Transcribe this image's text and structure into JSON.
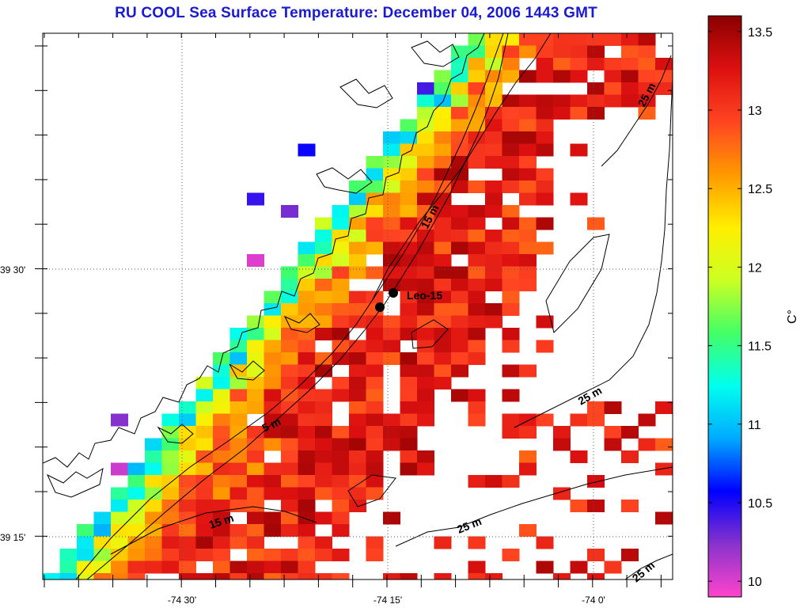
{
  "title": "RU COOL  Sea Surface Temperature:  December 04, 2006 1443 GMT",
  "map": {
    "lon_ticks": [
      "-74 30'",
      "-74 15'",
      "-74 0'"
    ],
    "lat_ticks": [
      "39 30'",
      "39 15'"
    ],
    "annotations": {
      "station": "Leo-15",
      "depth_5m": "5 m",
      "depth_15m_a": "15 m",
      "depth_15m_b": "15 m",
      "depth_25m_a": "25 m",
      "depth_25m_b": "25 m",
      "depth_25m_c": "25 m",
      "depth_25m_d": "25 m"
    }
  },
  "colorbar": {
    "unit": "C°",
    "ticks": [
      "10",
      "10.5",
      "11",
      "11.5",
      "12",
      "12.5",
      "13",
      "13.5"
    ],
    "range": [
      9.9,
      13.6
    ],
    "stops": [
      "#ff44cc",
      "#8833cc",
      "#0000ff",
      "#00aaff",
      "#00ffee",
      "#44ff66",
      "#ccff22",
      "#ffee00",
      "#ff9900",
      "#ff4422",
      "#dd1010",
      "#8a0000"
    ]
  },
  "colors": {
    "title": "#1a1ad0",
    "coast": "#000000",
    "grid": "#555555"
  }
}
